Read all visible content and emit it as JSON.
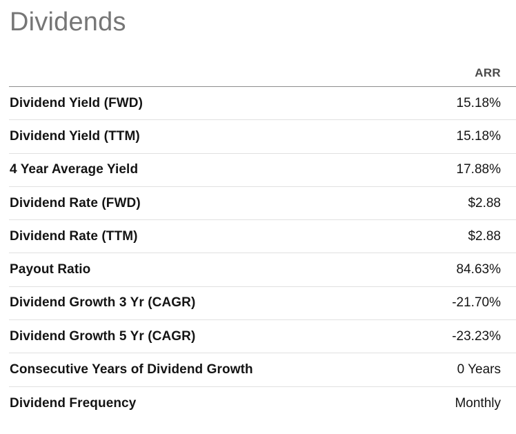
{
  "title": "Dividends",
  "table": {
    "column_header": "ARR",
    "rows": [
      {
        "label": "Dividend Yield (FWD)",
        "value": "15.18%"
      },
      {
        "label": "Dividend Yield (TTM)",
        "value": "15.18%"
      },
      {
        "label": "4 Year Average Yield",
        "value": "17.88%"
      },
      {
        "label": "Dividend Rate (FWD)",
        "value": "$2.88"
      },
      {
        "label": "Dividend Rate (TTM)",
        "value": "$2.88"
      },
      {
        "label": "Payout Ratio",
        "value": "84.63%"
      },
      {
        "label": "Dividend Growth 3 Yr (CAGR)",
        "value": "-21.70%"
      },
      {
        "label": "Dividend Growth 5 Yr (CAGR)",
        "value": "-23.23%"
      },
      {
        "label": "Consecutive Years of Dividend Growth",
        "value": "0 Years"
      },
      {
        "label": "Dividend Frequency",
        "value": "Monthly"
      }
    ]
  },
  "colors": {
    "title": "#767676",
    "header_text": "#4a4a4a",
    "label_text": "#141414",
    "value_text": "#141414",
    "header_border": "#8c8c8c",
    "row_border": "#e0e0e0",
    "background": "#ffffff"
  }
}
